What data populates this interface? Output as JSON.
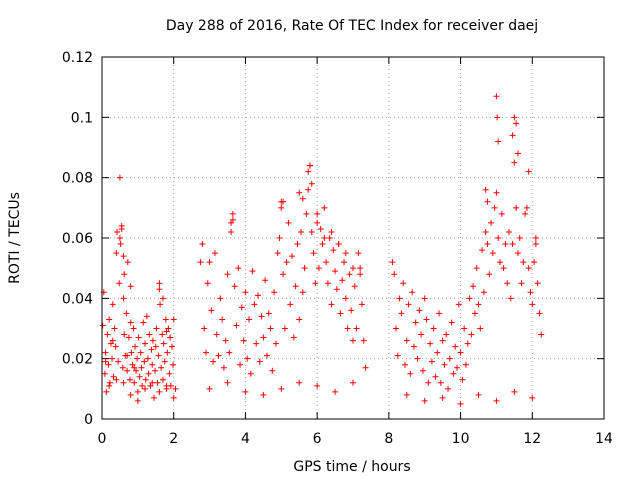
{
  "chart_data": {
    "type": "scatter",
    "title": "Day 288 of 2016, Rate Of TEC Index for receiver daej",
    "xlabel": "GPS time / hours",
    "ylabel": "ROTI / TECUs",
    "xlim": [
      0,
      14
    ],
    "ylim": [
      0,
      0.12
    ],
    "x_ticks": [
      0,
      2,
      4,
      6,
      8,
      10,
      12,
      14
    ],
    "x_tick_labels": [
      "0",
      "2",
      "4",
      "6",
      "8",
      "10",
      "12",
      "14"
    ],
    "y_ticks": [
      0,
      0.02,
      0.04,
      0.06,
      0.08,
      0.1,
      0.12
    ],
    "y_tick_labels": [
      "0",
      "0.02",
      "0.04",
      "0.06",
      "0.08",
      "0.1",
      "0.12"
    ],
    "grid": true,
    "marker": "+",
    "color": "#ff0000",
    "series": [
      {
        "name": "ROTI",
        "x": [
          0.02,
          0.05,
          0.08,
          0.1,
          0.12,
          0.15,
          0.18,
          0.2,
          0.22,
          0.25,
          0.28,
          0.3,
          0.32,
          0.35,
          0.38,
          0.4,
          0.42,
          0.45,
          0.48,
          0.5,
          0.52,
          0.55,
          0.58,
          0.6,
          0.62,
          0.65,
          0.68,
          0.7,
          0.72,
          0.75,
          0.78,
          0.8,
          0.82,
          0.85,
          0.88,
          0.9,
          0.92,
          0.95,
          0.98,
          1.0,
          1.02,
          1.05,
          1.08,
          1.1,
          1.12,
          1.15,
          1.18,
          1.2,
          1.22,
          1.25,
          1.28,
          1.3,
          1.32,
          1.35,
          1.38,
          1.4,
          1.42,
          1.45,
          1.48,
          1.5,
          1.52,
          1.55,
          1.58,
          1.6,
          1.62,
          1.65,
          1.68,
          1.7,
          1.72,
          1.75,
          1.78,
          1.8,
          1.82,
          1.85,
          1.88,
          1.9,
          1.92,
          1.95,
          1.98,
          2.0,
          2.05,
          0.1,
          0.3,
          0.5,
          0.55,
          0.6,
          0.62,
          0.7,
          0.8,
          0.9,
          1.6,
          1.7,
          1.8,
          0.2,
          0.4,
          0.6,
          0.8,
          1.0,
          1.2,
          1.4,
          1.6,
          1.8,
          2.0,
          2.75,
          2.8,
          2.85,
          2.9,
          2.95,
          3.0,
          3.05,
          3.1,
          3.15,
          3.2,
          3.25,
          3.3,
          3.35,
          3.4,
          3.45,
          3.5,
          3.55,
          3.6,
          3.65,
          3.7,
          3.75,
          3.8,
          3.85,
          3.9,
          3.95,
          4.0,
          4.05,
          4.1,
          4.15,
          4.2,
          4.25,
          4.3,
          4.35,
          4.4,
          4.45,
          4.5,
          4.55,
          4.6,
          4.65,
          4.7,
          4.75,
          4.8,
          4.85,
          4.9,
          4.95,
          5.0,
          5.05,
          5.1,
          5.15,
          5.2,
          5.25,
          5.3,
          5.35,
          5.4,
          5.45,
          5.5,
          5.55,
          5.6,
          5.65,
          5.7,
          5.75,
          5.8,
          5.85,
          5.9,
          5.95,
          6.0,
          6.05,
          6.1,
          6.15,
          6.2,
          6.25,
          6.3,
          6.35,
          6.4,
          6.45,
          6.5,
          6.55,
          6.6,
          6.65,
          6.7,
          6.75,
          6.8,
          6.85,
          6.9,
          6.95,
          7.0,
          7.05,
          7.1,
          7.15,
          7.2,
          7.25,
          7.3,
          7.35,
          3.6,
          3.65,
          5.0,
          5.05,
          5.5,
          5.6,
          5.75,
          5.8,
          5.85,
          6.0,
          6.2,
          6.4,
          6.6,
          6.8,
          7.0,
          7.2,
          3.0,
          3.5,
          4.0,
          4.5,
          5.0,
          5.5,
          6.0,
          6.5,
          7.0,
          8.1,
          8.15,
          8.2,
          8.25,
          8.3,
          8.35,
          8.4,
          8.45,
          8.5,
          8.55,
          8.6,
          8.65,
          8.7,
          8.75,
          8.8,
          8.85,
          8.9,
          8.95,
          9.0,
          9.05,
          9.1,
          9.15,
          9.2,
          9.25,
          9.3,
          9.35,
          9.4,
          9.45,
          9.5,
          9.55,
          9.6,
          9.65,
          9.7,
          9.75,
          9.8,
          9.85,
          9.9,
          9.95,
          10.0,
          10.05,
          10.1,
          10.15,
          10.2,
          10.25,
          10.3,
          10.35,
          10.4,
          10.45,
          10.5,
          10.55,
          10.6,
          10.65,
          10.7,
          10.75,
          10.8,
          10.85,
          10.9,
          10.95,
          11.0,
          11.05,
          11.1,
          11.15,
          11.2,
          11.25,
          11.3,
          11.35,
          11.4,
          11.45,
          11.5,
          11.55,
          11.6,
          11.65,
          11.7,
          11.75,
          11.8,
          11.85,
          11.9,
          11.95,
          12.0,
          12.05,
          12.1,
          12.15,
          12.2,
          12.25,
          11.0,
          11.02,
          11.05,
          11.5,
          11.55,
          11.6,
          11.45,
          12.1,
          10.7,
          10.75,
          11.9,
          8.5,
          9.0,
          9.5,
          10.0,
          10.5,
          11.0,
          11.5,
          12.0
        ],
        "y": [
          0.031,
          0.042,
          0.015,
          0.022,
          0.009,
          0.028,
          0.018,
          0.033,
          0.012,
          0.025,
          0.02,
          0.038,
          0.014,
          0.03,
          0.024,
          0.055,
          0.062,
          0.019,
          0.045,
          0.08,
          0.058,
          0.063,
          0.017,
          0.04,
          0.028,
          0.021,
          0.035,
          0.016,
          0.052,
          0.027,
          0.013,
          0.044,
          0.022,
          0.018,
          0.03,
          0.012,
          0.024,
          0.016,
          0.02,
          0.009,
          0.027,
          0.014,
          0.022,
          0.017,
          0.011,
          0.032,
          0.019,
          0.025,
          0.013,
          0.034,
          0.02,
          0.015,
          0.028,
          0.011,
          0.023,
          0.018,
          0.026,
          0.007,
          0.016,
          0.024,
          0.03,
          0.012,
          0.021,
          0.043,
          0.038,
          0.017,
          0.028,
          0.013,
          0.025,
          0.019,
          0.033,
          0.01,
          0.022,
          0.03,
          0.015,
          0.027,
          0.011,
          0.024,
          0.018,
          0.033,
          0.01,
          0.019,
          0.026,
          0.06,
          0.064,
          0.054,
          0.048,
          0.021,
          0.032,
          0.017,
          0.045,
          0.04,
          0.029,
          0.011,
          0.013,
          0.012,
          0.008,
          0.006,
          0.01,
          0.012,
          0.009,
          0.011,
          0.007,
          0.052,
          0.058,
          0.03,
          0.022,
          0.045,
          0.052,
          0.036,
          0.019,
          0.055,
          0.028,
          0.021,
          0.04,
          0.033,
          0.017,
          0.026,
          0.048,
          0.022,
          0.062,
          0.066,
          0.044,
          0.031,
          0.05,
          0.018,
          0.037,
          0.026,
          0.042,
          0.02,
          0.033,
          0.015,
          0.049,
          0.038,
          0.025,
          0.041,
          0.019,
          0.034,
          0.027,
          0.046,
          0.021,
          0.035,
          0.03,
          0.016,
          0.042,
          0.025,
          0.055,
          0.06,
          0.072,
          0.048,
          0.03,
          0.052,
          0.065,
          0.038,
          0.054,
          0.027,
          0.044,
          0.058,
          0.033,
          0.062,
          0.042,
          0.05,
          0.068,
          0.076,
          0.084,
          0.062,
          0.055,
          0.045,
          0.068,
          0.05,
          0.063,
          0.058,
          0.07,
          0.052,
          0.045,
          0.06,
          0.038,
          0.056,
          0.049,
          0.043,
          0.058,
          0.035,
          0.046,
          0.052,
          0.04,
          0.03,
          0.048,
          0.036,
          0.026,
          0.044,
          0.03,
          0.055,
          0.05,
          0.038,
          0.026,
          0.017,
          0.065,
          0.068,
          0.07,
          0.072,
          0.075,
          0.073,
          0.082,
          0.084,
          0.078,
          0.065,
          0.06,
          0.062,
          0.058,
          0.055,
          0.05,
          0.048,
          0.01,
          0.012,
          0.009,
          0.008,
          0.01,
          0.012,
          0.011,
          0.009,
          0.012,
          0.052,
          0.048,
          0.03,
          0.021,
          0.04,
          0.035,
          0.045,
          0.018,
          0.026,
          0.038,
          0.015,
          0.042,
          0.024,
          0.032,
          0.02,
          0.036,
          0.028,
          0.016,
          0.04,
          0.033,
          0.012,
          0.025,
          0.019,
          0.03,
          0.014,
          0.022,
          0.035,
          0.012,
          0.026,
          0.018,
          0.028,
          0.01,
          0.02,
          0.032,
          0.015,
          0.024,
          0.017,
          0.038,
          0.022,
          0.013,
          0.03,
          0.018,
          0.025,
          0.04,
          0.028,
          0.044,
          0.035,
          0.05,
          0.038,
          0.03,
          0.056,
          0.042,
          0.062,
          0.058,
          0.048,
          0.065,
          0.055,
          0.07,
          0.075,
          0.06,
          0.052,
          0.068,
          0.05,
          0.058,
          0.045,
          0.062,
          0.04,
          0.058,
          0.085,
          0.07,
          0.055,
          0.06,
          0.045,
          0.052,
          0.068,
          0.07,
          0.05,
          0.042,
          0.038,
          0.052,
          0.06,
          0.045,
          0.035,
          0.028,
          0.107,
          0.1,
          0.092,
          0.1,
          0.098,
          0.088,
          0.094,
          0.058,
          0.076,
          0.072,
          0.082,
          0.008,
          0.006,
          0.007,
          0.005,
          0.008,
          0.006,
          0.009,
          0.007
        ]
      }
    ]
  }
}
